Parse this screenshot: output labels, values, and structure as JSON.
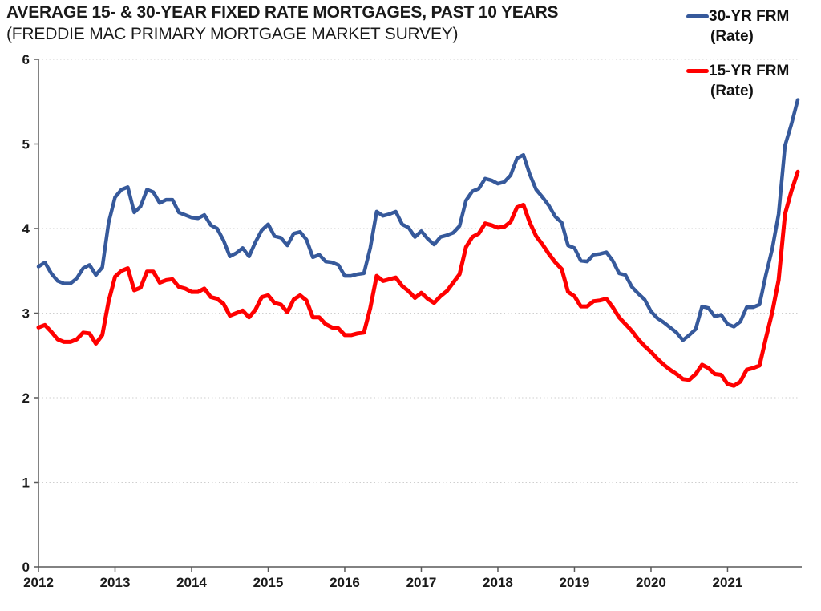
{
  "header": {
    "title": "AVERAGE 15- & 30-YEAR FIXED RATE MORTGAGES, PAST 10 YEARS",
    "subtitle": "(FREDDIE MAC PRIMARY MORTGAGE MARKET SURVEY)"
  },
  "legend": [
    {
      "label": "30-YR FRM",
      "sublabel": "(Rate)",
      "color": "#36599B"
    },
    {
      "label": "15-YR FRM",
      "sublabel": "(Rate)",
      "color": "#FF0000"
    }
  ],
  "colors": {
    "series_30yr": "#36599B",
    "series_15yr": "#FF0000",
    "gridline": "#CFCFCF",
    "axis": "#595959",
    "label_text": "#1A1A1A"
  },
  "chart_data": {
    "type": "line",
    "title": "AVERAGE 15- & 30-YEAR FIXED RATE MORTGAGES, PAST 10 YEARS",
    "subtitle": "(FREDDIE MAC PRIMARY MORTGAGE MARKET SURVEY)",
    "x_unit": "month",
    "x_start": "2012-07",
    "x_end": "2022-06",
    "x_tick_labels": [
      "2012",
      "2013",
      "2014",
      "2015",
      "2016",
      "2017",
      "2018",
      "2019",
      "2020",
      "2021"
    ],
    "x_tick_every_n_points": 12,
    "ylim": [
      0,
      6
    ],
    "y_ticks": [
      0,
      1,
      2,
      3,
      4,
      5,
      6
    ],
    "grid": "horizontal-dotted",
    "legend_position": "top-right",
    "series": [
      {
        "name": "30-YR FRM (Rate)",
        "color": "#36599B",
        "stroke_width": 4.5,
        "values": [
          3.55,
          3.6,
          3.47,
          3.38,
          3.35,
          3.35,
          3.41,
          3.53,
          3.57,
          3.45,
          3.54,
          4.07,
          4.37,
          4.46,
          4.49,
          4.19,
          4.26,
          4.46,
          4.43,
          4.3,
          4.34,
          4.34,
          4.19,
          4.16,
          4.13,
          4.12,
          4.16,
          4.04,
          4.0,
          3.86,
          3.67,
          3.71,
          3.77,
          3.67,
          3.84,
          3.98,
          4.05,
          3.91,
          3.89,
          3.8,
          3.94,
          3.96,
          3.87,
          3.66,
          3.69,
          3.61,
          3.6,
          3.57,
          3.44,
          3.44,
          3.46,
          3.47,
          3.77,
          4.2,
          4.15,
          4.17,
          4.2,
          4.05,
          4.01,
          3.9,
          3.97,
          3.88,
          3.81,
          3.9,
          3.92,
          3.95,
          4.03,
          4.33,
          4.44,
          4.47,
          4.59,
          4.57,
          4.53,
          4.55,
          4.63,
          4.83,
          4.87,
          4.64,
          4.46,
          4.37,
          4.27,
          4.14,
          4.07,
          3.8,
          3.77,
          3.62,
          3.61,
          3.69,
          3.7,
          3.72,
          3.62,
          3.47,
          3.45,
          3.31,
          3.23,
          3.16,
          3.02,
          2.94,
          2.89,
          2.83,
          2.77,
          2.68,
          2.74,
          2.81,
          3.08,
          3.06,
          2.96,
          2.98,
          2.87,
          2.84,
          2.9,
          3.07,
          3.07,
          3.1,
          3.45,
          3.76,
          4.17,
          4.98,
          5.23,
          5.52
        ]
      },
      {
        "name": "15-YR FRM (Rate)",
        "color": "#FF0000",
        "stroke_width": 5,
        "values": [
          2.83,
          2.86,
          2.78,
          2.69,
          2.66,
          2.66,
          2.69,
          2.77,
          2.76,
          2.64,
          2.74,
          3.14,
          3.43,
          3.5,
          3.53,
          3.27,
          3.3,
          3.49,
          3.49,
          3.36,
          3.39,
          3.4,
          3.31,
          3.29,
          3.25,
          3.25,
          3.29,
          3.19,
          3.17,
          3.11,
          2.97,
          3.0,
          3.03,
          2.95,
          3.04,
          3.19,
          3.21,
          3.12,
          3.1,
          3.01,
          3.16,
          3.21,
          3.15,
          2.95,
          2.95,
          2.87,
          2.83,
          2.82,
          2.74,
          2.74,
          2.76,
          2.77,
          3.06,
          3.44,
          3.38,
          3.4,
          3.42,
          3.32,
          3.26,
          3.18,
          3.24,
          3.17,
          3.12,
          3.2,
          3.26,
          3.36,
          3.46,
          3.78,
          3.9,
          3.94,
          4.06,
          4.04,
          4.01,
          4.02,
          4.08,
          4.25,
          4.28,
          4.07,
          3.91,
          3.81,
          3.7,
          3.6,
          3.52,
          3.25,
          3.2,
          3.08,
          3.08,
          3.14,
          3.15,
          3.17,
          3.07,
          2.95,
          2.87,
          2.79,
          2.69,
          2.61,
          2.54,
          2.46,
          2.39,
          2.33,
          2.28,
          2.22,
          2.21,
          2.28,
          2.39,
          2.35,
          2.28,
          2.27,
          2.16,
          2.14,
          2.19,
          2.33,
          2.35,
          2.38,
          2.7,
          3.01,
          3.39,
          4.17,
          4.44,
          4.67
        ]
      }
    ]
  }
}
